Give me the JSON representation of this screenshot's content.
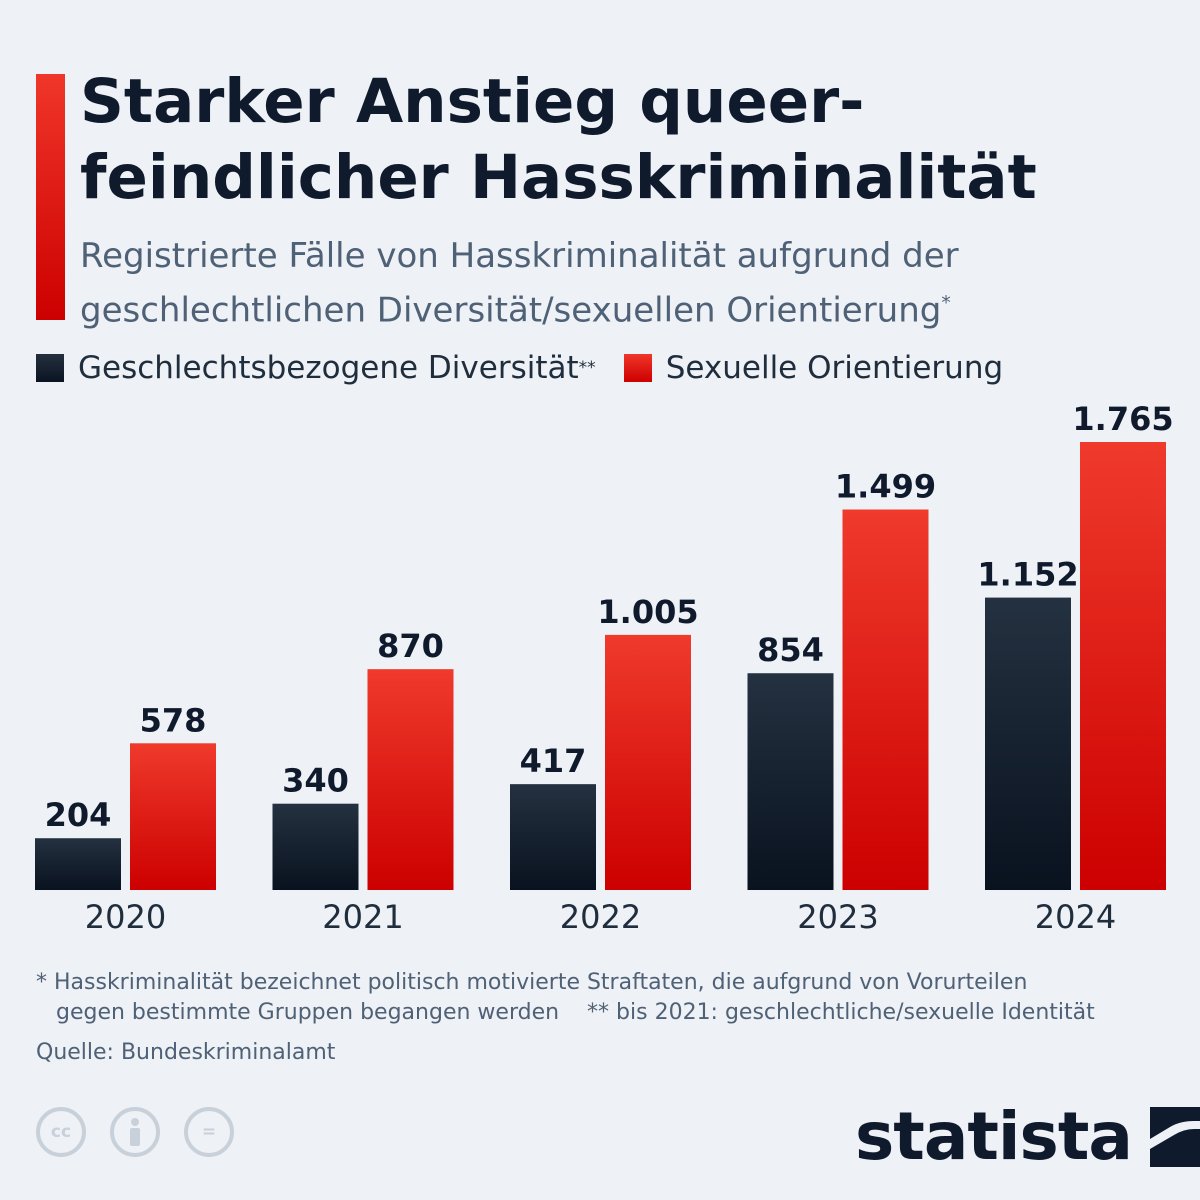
{
  "header": {
    "title": "Starker Anstieg queer-feindlicher Hasskriminalität",
    "subtitle": "Registrierte Fälle von Hasskriminalität aufgrund der geschlechtlichen Diversität/sexuellen Orientierung",
    "subtitle_mark": "*"
  },
  "legend": {
    "items": [
      {
        "label": "Geschlechtsbezogene Diversität",
        "mark": "**",
        "color": "#0f1b2d"
      },
      {
        "label": "Sexuelle Orientierung",
        "mark": "",
        "color": "#e4251b"
      }
    ]
  },
  "chart_data": {
    "type": "bar",
    "categories": [
      "2020",
      "2021",
      "2022",
      "2023",
      "2024"
    ],
    "series": [
      {
        "name": "Geschlechtsbezogene Diversität",
        "values": [
          204,
          340,
          417,
          854,
          1152
        ],
        "color": "#0f1b2d"
      },
      {
        "name": "Sexuelle Orientierung",
        "values": [
          578,
          870,
          1005,
          1499,
          1765
        ],
        "color": "#e4251b"
      }
    ],
    "data_labels": [
      [
        "204",
        "340",
        "417",
        "854",
        "1.152"
      ],
      [
        "578",
        "870",
        "1.005",
        "1.499",
        "1.765"
      ]
    ],
    "ylim": [
      0,
      1765
    ],
    "grid": false,
    "legend_position": "top-left"
  },
  "footer": {
    "footnote_1": "* Hasskriminalität bezeichnet politisch motivierte Straftaten, die aufgrund von Vorurteilen",
    "footnote_1b": "gegen bestimmte Gruppen begangen werden",
    "footnote_2": "** bis 2021: geschlechtliche/sexuelle Identität",
    "source": "Quelle: Bundeskriminalamt",
    "license_icons": [
      "cc-icon",
      "person-icon",
      "equals-icon"
    ],
    "license_cc_text": "cc",
    "license_eq_text": "=",
    "brand": "statista"
  }
}
